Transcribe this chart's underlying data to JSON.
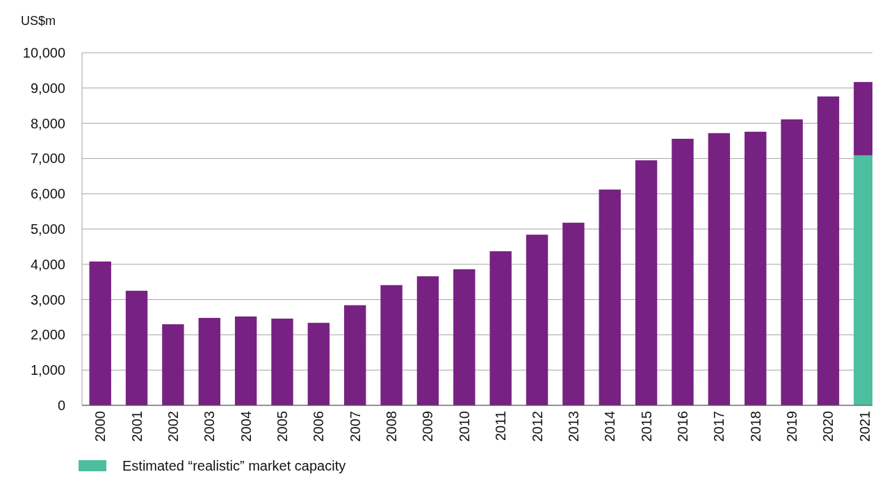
{
  "chart_data": {
    "type": "bar",
    "stacked": true,
    "ylabel": "US$m",
    "categories": [
      "2000",
      "2001",
      "2002",
      "2003",
      "2004",
      "2005",
      "2006",
      "2007",
      "2008",
      "2009",
      "2010",
      "2011",
      "2012",
      "2013",
      "2014",
      "2015",
      "2016",
      "2017",
      "2018",
      "2019",
      "2020",
      "2021"
    ],
    "series": [
      {
        "name": "Estimated “realistic” market capacity",
        "color": "#4dbfa0",
        "values": [
          null,
          null,
          null,
          null,
          null,
          null,
          null,
          null,
          null,
          null,
          null,
          null,
          null,
          null,
          null,
          null,
          null,
          null,
          null,
          null,
          null,
          7090
        ]
      },
      {
        "color": "#772283",
        "values": [
          4080,
          3250,
          2300,
          2480,
          2520,
          2460,
          2340,
          2840,
          3410,
          3660,
          3860,
          4370,
          4840,
          5180,
          6120,
          6950,
          7560,
          7720,
          7760,
          8110,
          8760,
          2080
        ]
      }
    ],
    "ylim": [
      0,
      10000
    ],
    "yticks": [
      0,
      {
        "value": 1000,
        "label": "1,000"
      },
      {
        "value": 2000,
        "label": "2,000"
      },
      {
        "value": 3000,
        "label": "3,000"
      },
      {
        "value": 4000,
        "label": "4,000"
      },
      {
        "value": 5000,
        "label": "5,000"
      },
      {
        "value": 6000,
        "label": "6,000"
      },
      {
        "value": 7000,
        "label": "7,000"
      },
      {
        "value": 8000,
        "label": "8,000"
      },
      {
        "value": 9000,
        "label": "9,000"
      },
      {
        "value": 10000,
        "label": "10,000"
      }
    ],
    "grid": "y",
    "legend": "bottom"
  }
}
